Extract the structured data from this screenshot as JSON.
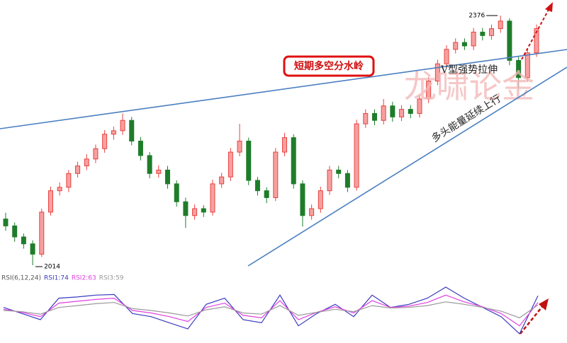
{
  "chart_data": {
    "type": "candlestick",
    "up_color": "#e8423f",
    "down_color": "#1e7d2a",
    "open": [
      2081,
      2071,
      2055,
      2045,
      2030,
      2091,
      2122,
      2127,
      2147,
      2158,
      2168,
      2183,
      2204,
      2209,
      2224,
      2194,
      2173,
      2147,
      2152,
      2132,
      2106,
      2086,
      2096,
      2091,
      2132,
      2142,
      2178,
      2194,
      2137,
      2122,
      2112,
      2178,
      2199,
      2132,
      2086,
      2096,
      2122,
      2152,
      2147,
      2127,
      2219,
      2234,
      2224,
      2245,
      2229,
      2240,
      2234,
      2255,
      2281,
      2306,
      2327,
      2337,
      2332,
      2352,
      2347,
      2357,
      2368,
      2311,
      2286,
      2322
    ],
    "high": [
      2090,
      2076,
      2060,
      2050,
      2096,
      2128,
      2134,
      2152,
      2164,
      2175,
      2189,
      2210,
      2215,
      2234,
      2229,
      2200,
      2178,
      2159,
      2158,
      2137,
      2112,
      2102,
      2101,
      2138,
      2148,
      2184,
      2219,
      2199,
      2142,
      2127,
      2184,
      2206,
      2204,
      2137,
      2102,
      2128,
      2158,
      2158,
      2152,
      2225,
      2240,
      2240,
      2255,
      2251,
      2246,
      2246,
      2261,
      2287,
      2312,
      2333,
      2343,
      2343,
      2358,
      2358,
      2363,
      2376,
      2372,
      2316,
      2328,
      2363
    ],
    "low": [
      2064,
      2048,
      2038,
      2014,
      2026,
      2086,
      2115,
      2120,
      2141,
      2152,
      2162,
      2177,
      2196,
      2203,
      2188,
      2166,
      2140,
      2141,
      2125,
      2099,
      2068,
      2080,
      2084,
      2086,
      2126,
      2136,
      2172,
      2130,
      2115,
      2104,
      2107,
      2172,
      2125,
      2070,
      2080,
      2090,
      2116,
      2140,
      2120,
      2122,
      2213,
      2217,
      2218,
      2222,
      2223,
      2227,
      2228,
      2249,
      2275,
      2300,
      2321,
      2326,
      2326,
      2340,
      2341,
      2351,
      2304,
      2270,
      2280,
      2316
    ],
    "close": [
      2071,
      2055,
      2045,
      2030,
      2091,
      2122,
      2127,
      2147,
      2158,
      2168,
      2183,
      2204,
      2209,
      2224,
      2194,
      2173,
      2147,
      2152,
      2132,
      2106,
      2086,
      2096,
      2091,
      2132,
      2142,
      2178,
      2194,
      2137,
      2122,
      2112,
      2178,
      2199,
      2132,
      2086,
      2096,
      2122,
      2152,
      2147,
      2127,
      2219,
      2234,
      2224,
      2245,
      2229,
      2240,
      2234,
      2255,
      2281,
      2306,
      2327,
      2337,
      2332,
      2352,
      2347,
      2357,
      2368,
      2311,
      2286,
      2322,
      2357
    ],
    "annotations": {
      "box_label": "短期多空分水岭",
      "v_label": "V型强势拉伸",
      "trend_label": "多头能量延续上行",
      "watermark": "龙啸论金"
    },
    "indicator": {
      "title": "RSI(6,12,24)",
      "series": [
        {
          "name": "RSI1",
          "legend": "RSI1:74",
          "color": "#3b3bbf",
          "values": [
            55,
            45,
            35,
            70,
            72,
            75,
            76,
            45,
            40,
            30,
            20,
            60,
            70,
            35,
            30,
            75,
            25,
            45,
            60,
            40,
            75,
            55,
            60,
            70,
            88,
            70,
            55,
            40,
            12,
            74
          ]
        },
        {
          "name": "RSI2",
          "legend": "RSI2:63",
          "color": "#e23fe2",
          "values": [
            52,
            47,
            40,
            62,
            65,
            68,
            70,
            50,
            46,
            40,
            32,
            55,
            62,
            42,
            38,
            66,
            35,
            47,
            56,
            46,
            66,
            55,
            57,
            63,
            75,
            64,
            56,
            45,
            25,
            63
          ]
        },
        {
          "name": "RSI3",
          "legend": "RSI3:59",
          "color": "#9a9a9a",
          "values": [
            50,
            48,
            44,
            55,
            58,
            61,
            63,
            53,
            50,
            46,
            41,
            51,
            56,
            46,
            44,
            58,
            42,
            47,
            52,
            48,
            58,
            54,
            55,
            58,
            64,
            60,
            55,
            49,
            38,
            59
          ]
        }
      ]
    }
  }
}
